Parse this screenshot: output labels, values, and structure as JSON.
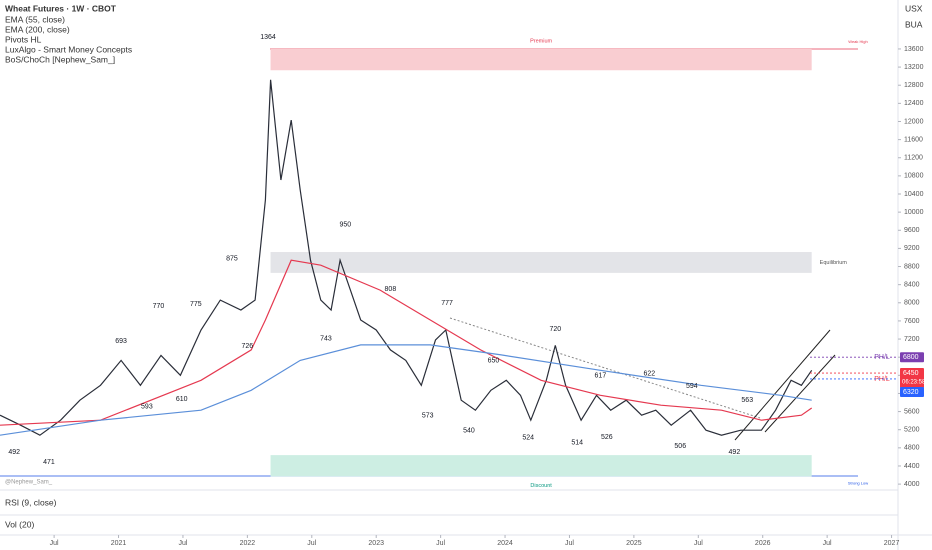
{
  "header": {
    "title": "Wheat Futures · 1W · CBOT",
    "currency": "USX",
    "symbol": "BUA",
    "indicators": [
      "EMA (55, close)",
      "EMA (200, close)",
      "Pivots HL",
      "LuxAlgo - Smart Money Concepts",
      "BoS/ChoCh [Nephew_Sam_]"
    ],
    "watermark": "@Nephew_Sam_"
  },
  "panes": [
    "RSI (9, close)",
    "Vol (20)"
  ],
  "chart_data": {
    "type": "line",
    "xlim": [
      2020.08,
      2027.05
    ],
    "ylim": [
      3870,
      14680
    ],
    "xticks": [
      {
        "value": 2020.5,
        "label": "Jul"
      },
      2021,
      {
        "value": 2021.5,
        "label": "Jul"
      },
      2022,
      {
        "value": 2022.5,
        "label": "Jul"
      },
      2023,
      {
        "value": 2023.5,
        "label": "Jul"
      },
      2024,
      {
        "value": 2024.5,
        "label": "Jul"
      },
      2025,
      {
        "value": 2025.5,
        "label": "Jul"
      },
      2026,
      {
        "value": 2026.5,
        "label": "Jul"
      },
      2027
    ],
    "yticks": [
      4000,
      4400,
      4800,
      5200,
      5600,
      6000,
      6400,
      6800,
      7200,
      7600,
      8000,
      8400,
      8800,
      9200,
      9600,
      10000,
      10400,
      10800,
      11200,
      11600,
      12000,
      12400,
      12800,
      13200,
      13600
    ],
    "series": [
      {
        "name": "Close",
        "color": "#2a2e39",
        "x": [
          2020.08,
          2020.24,
          2020.39,
          2020.55,
          2020.7,
          2020.86,
          2021.02,
          2021.17,
          2021.33,
          2021.48,
          2021.64,
          2021.79,
          2021.95,
          2022.06,
          2022.14,
          2022.18,
          2022.26,
          2022.34,
          2022.41,
          2022.49,
          2022.57,
          2022.65,
          2022.72,
          2022.8,
          2022.88,
          2023.0,
          2023.11,
          2023.23,
          2023.35,
          2023.46,
          2023.54,
          2023.66,
          2023.77,
          2023.89,
          2024.01,
          2024.12,
          2024.2,
          2024.32,
          2024.39,
          2024.47,
          2024.59,
          2024.71,
          2024.82,
          2024.94,
          2025.06,
          2025.17,
          2025.29,
          2025.44,
          2025.56,
          2025.68,
          2025.83,
          2025.99,
          2026.1,
          2026.22,
          2026.3,
          2026.38
        ],
        "values": [
          5520,
          5300,
          5080,
          5410,
          5850,
          6180,
          6730,
          6180,
          6840,
          6400,
          7400,
          8060,
          7840,
          8060,
          10270,
          12920,
          10710,
          12030,
          10490,
          8940,
          8060,
          7840,
          8940,
          8280,
          7620,
          7400,
          6960,
          6730,
          6180,
          7180,
          7400,
          5850,
          5630,
          6070,
          6290,
          5960,
          5410,
          6290,
          7060,
          6180,
          5410,
          5960,
          5630,
          5850,
          5520,
          5630,
          5300,
          5630,
          5190,
          5080,
          5190,
          5190,
          5630,
          6290,
          6180,
          6510
        ]
      },
      {
        "name": "EMA (55, close)",
        "color": "#e53950",
        "x": [
          2020.08,
          2020.86,
          2021.64,
          2022.03,
          2022.14,
          2022.34,
          2022.57,
          2023.03,
          2023.42,
          2023.81,
          2024.28,
          2024.74,
          2025.21,
          2025.68,
          2025.99,
          2026.3,
          2026.38
        ],
        "values": [
          5300,
          5410,
          6290,
          6960,
          7620,
          8940,
          8830,
          8280,
          7620,
          6960,
          6290,
          5960,
          5740,
          5630,
          5410,
          5520,
          5680
        ]
      },
      {
        "name": "EMA (200, close)",
        "color": "#5b8fd9",
        "x": [
          2020.08,
          2020.86,
          2021.64,
          2022.03,
          2022.41,
          2022.88,
          2023.42,
          2023.97,
          2024.74,
          2025.52,
          2026.14,
          2026.38
        ],
        "values": [
          5080,
          5410,
          5630,
          6070,
          6730,
          7070,
          7070,
          6850,
          6510,
          6180,
          5960,
          5850
        ]
      }
    ],
    "zones": [
      {
        "label": "Premium",
        "from": 13130,
        "to": 13600,
        "x0": 2022.18,
        "x1": 2026.38,
        "color": "#f9cdd1",
        "text_color": "#e53950"
      },
      {
        "label": "Equilibrium",
        "from": 8660,
        "to": 9120,
        "x0": 2022.18,
        "x1": 2026.38,
        "color": "#e3e4e8",
        "text_color": "#555"
      },
      {
        "label": "Discount",
        "from": 4170,
        "to": 4640,
        "x0": 2022.18,
        "x1": 2026.38,
        "color": "#cdeee3",
        "text_color": "#089981"
      }
    ],
    "edge_labels": [
      {
        "label": "Weak High",
        "value": 13600,
        "color": "#e53950"
      },
      {
        "label": "Strong Low",
        "value": 4170,
        "color": "#1e53e5"
      }
    ],
    "annotations": [
      {
        "text": "1364",
        "x": 2022.16,
        "y": 13640,
        "kind": "high"
      },
      {
        "text": "950",
        "x": 2022.76,
        "y": 9500,
        "kind": "high"
      },
      {
        "text": "875",
        "x": 2021.88,
        "y": 8750,
        "kind": "high"
      },
      {
        "text": "808",
        "x": 2023.11,
        "y": 8080,
        "kind": "high"
      },
      {
        "text": "777",
        "x": 2023.55,
        "y": 7770,
        "kind": "high"
      },
      {
        "text": "770",
        "x": 2021.31,
        "y": 7700,
        "kind": "high"
      },
      {
        "text": "775",
        "x": 2021.6,
        "y": 7750,
        "kind": "high"
      },
      {
        "text": "720",
        "x": 2024.39,
        "y": 7200,
        "kind": "high"
      },
      {
        "text": "693",
        "x": 2021.02,
        "y": 6930,
        "kind": "high"
      },
      {
        "text": "650",
        "x": 2023.91,
        "y": 6500,
        "kind": "high"
      },
      {
        "text": "617",
        "x": 2024.74,
        "y": 6170,
        "kind": "high"
      },
      {
        "text": "622",
        "x": 2025.12,
        "y": 6220,
        "kind": "high"
      },
      {
        "text": "594",
        "x": 2025.45,
        "y": 5940,
        "kind": "high"
      },
      {
        "text": "563",
        "x": 2025.88,
        "y": 5630,
        "kind": "high"
      },
      {
        "text": "743",
        "x": 2022.61,
        "y": 7430,
        "kind": "low"
      },
      {
        "text": "726",
        "x": 2022.0,
        "y": 7260,
        "kind": "low"
      },
      {
        "text": "593",
        "x": 2021.22,
        "y": 5930,
        "kind": "low"
      },
      {
        "text": "610",
        "x": 2021.49,
        "y": 6100,
        "kind": "low"
      },
      {
        "text": "573",
        "x": 2023.4,
        "y": 5730,
        "kind": "low"
      },
      {
        "text": "540",
        "x": 2023.72,
        "y": 5400,
        "kind": "low"
      },
      {
        "text": "524",
        "x": 2024.18,
        "y": 5240,
        "kind": "low"
      },
      {
        "text": "514",
        "x": 2024.56,
        "y": 5140,
        "kind": "low"
      },
      {
        "text": "526",
        "x": 2024.79,
        "y": 5260,
        "kind": "low"
      },
      {
        "text": "506",
        "x": 2025.36,
        "y": 5060,
        "kind": "low"
      },
      {
        "text": "492",
        "x": 2025.78,
        "y": 4920,
        "kind": "low"
      },
      {
        "text": "492",
        "x": 2020.19,
        "y": 4920,
        "kind": "low"
      },
      {
        "text": "471",
        "x": 2020.46,
        "y": 4710,
        "kind": "low"
      }
    ],
    "price_labels": [
      {
        "value": 6800,
        "color": "#7b3fb0",
        "tag": "PH/L"
      },
      {
        "value": 6450,
        "color": "#f23645",
        "countdown": "06:23:58",
        "tag": "PH/L"
      },
      {
        "value": 6320,
        "color": "#2962ff"
      }
    ]
  }
}
